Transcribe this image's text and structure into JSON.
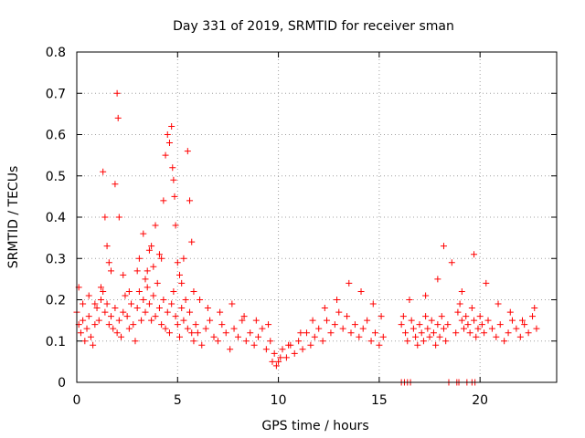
{
  "chart_data": {
    "type": "scatter",
    "title": "Day 331 of 2019, SRMTID for receiver sman",
    "xlabel": "GPS time / hours",
    "ylabel": "SRMTID / TECUs",
    "xlim": [
      0,
      23.8
    ],
    "ylim": [
      0,
      0.8
    ],
    "xticks": [
      0,
      5,
      10,
      15,
      20
    ],
    "xtick_labels": [
      "0",
      "5",
      "10",
      "15",
      "20"
    ],
    "yticks": [
      0,
      0.1,
      0.2,
      0.3,
      0.4,
      0.5,
      0.6,
      0.7,
      0.8
    ],
    "ytick_labels": [
      "0",
      "0.1",
      "0.2",
      "0.3",
      "0.4",
      "0.5",
      "0.6",
      "0.7",
      "0.8"
    ],
    "grid": true,
    "marker": "+",
    "color": "#ff0000",
    "series": [
      {
        "name": "SRMTID",
        "x": [
          0.0,
          0.1,
          0.2,
          0.3,
          0.4,
          0.5,
          0.6,
          0.7,
          0.8,
          0.9,
          1.0,
          1.1,
          1.2,
          1.3,
          1.4,
          1.5,
          1.6,
          1.7,
          1.8,
          1.9,
          2.0,
          2.1,
          2.2,
          2.3,
          2.4,
          2.5,
          2.6,
          2.7,
          2.8,
          2.9,
          3.0,
          3.1,
          3.2,
          3.3,
          3.4,
          3.5,
          3.6,
          3.7,
          3.8,
          3.9,
          4.0,
          4.1,
          4.2,
          4.3,
          4.4,
          4.5,
          4.6,
          4.7,
          4.8,
          4.9,
          5.0,
          5.1,
          5.2,
          5.3,
          5.4,
          5.5,
          5.6,
          5.7,
          5.8,
          5.9,
          6.0,
          6.2,
          6.4,
          6.6,
          6.8,
          7.0,
          7.2,
          7.4,
          7.6,
          7.8,
          8.0,
          8.2,
          8.4,
          8.6,
          8.8,
          9.0,
          9.2,
          9.4,
          9.6,
          9.8,
          10.0,
          10.2,
          10.4,
          10.6,
          10.8,
          11.0,
          11.2,
          11.4,
          11.6,
          11.8,
          12.0,
          12.2,
          12.4,
          12.6,
          12.8,
          13.0,
          13.2,
          13.4,
          13.6,
          13.8,
          14.0,
          14.2,
          14.4,
          14.6,
          14.8,
          15.0,
          15.2,
          16.1,
          16.2,
          16.3,
          16.4,
          16.6,
          16.7,
          16.8,
          16.9,
          17.0,
          17.1,
          17.2,
          17.3,
          17.4,
          17.5,
          17.6,
          17.7,
          17.8,
          17.9,
          18.0,
          18.1,
          18.2,
          18.3,
          18.4,
          18.8,
          18.9,
          19.0,
          19.1,
          19.2,
          19.3,
          19.4,
          19.5,
          19.6,
          19.7,
          19.8,
          19.9,
          20.0,
          20.1,
          20.2,
          20.4,
          20.6,
          20.8,
          21.0,
          21.2,
          21.4,
          21.6,
          21.8,
          22.0,
          22.2,
          22.4,
          22.6,
          22.8,
          1.3,
          1.4,
          1.5,
          1.6,
          1.7,
          1.9,
          2.0,
          2.05,
          2.1,
          3.1,
          3.3,
          3.5,
          3.7,
          3.9,
          4.1,
          4.3,
          4.4,
          4.5,
          4.6,
          4.7,
          4.75,
          4.8,
          4.85,
          4.9,
          5.0,
          5.1,
          5.3,
          5.5,
          5.6,
          5.7,
          0.1,
          0.3,
          0.6,
          0.9,
          1.2,
          2.3,
          2.6,
          3.0,
          3.4,
          3.6,
          3.8,
          4.2,
          5.2,
          5.8,
          6.1,
          6.5,
          7.1,
          7.7,
          8.3,
          8.9,
          9.5,
          9.7,
          9.9,
          10.1,
          10.5,
          11.1,
          11.7,
          12.3,
          12.9,
          13.5,
          14.1,
          14.7,
          15.1,
          16.5,
          17.3,
          17.9,
          18.2,
          18.6,
          19.1,
          19.7,
          20.3,
          20.9,
          21.5,
          22.1,
          22.7,
          16.1,
          16.25,
          16.4,
          16.55,
          18.45,
          18.85,
          18.95,
          19.35,
          19.6,
          19.75
        ],
        "y": [
          0.17,
          0.14,
          0.12,
          0.15,
          0.1,
          0.13,
          0.16,
          0.11,
          0.09,
          0.14,
          0.18,
          0.15,
          0.2,
          0.22,
          0.17,
          0.19,
          0.14,
          0.16,
          0.13,
          0.18,
          0.12,
          0.15,
          0.11,
          0.17,
          0.21,
          0.16,
          0.13,
          0.19,
          0.14,
          0.1,
          0.18,
          0.22,
          0.15,
          0.2,
          0.17,
          0.23,
          0.19,
          0.15,
          0.21,
          0.16,
          0.24,
          0.18,
          0.14,
          0.2,
          0.13,
          0.17,
          0.12,
          0.19,
          0.22,
          0.16,
          0.14,
          0.11,
          0.18,
          0.15,
          0.2,
          0.13,
          0.17,
          0.12,
          0.1,
          0.14,
          0.12,
          0.09,
          0.13,
          0.15,
          0.11,
          0.1,
          0.14,
          0.12,
          0.08,
          0.13,
          0.11,
          0.15,
          0.1,
          0.12,
          0.09,
          0.11,
          0.13,
          0.08,
          0.1,
          0.07,
          0.05,
          0.08,
          0.06,
          0.09,
          0.07,
          0.1,
          0.08,
          0.12,
          0.09,
          0.11,
          0.13,
          0.1,
          0.15,
          0.12,
          0.14,
          0.17,
          0.13,
          0.16,
          0.12,
          0.14,
          0.11,
          0.13,
          0.15,
          0.1,
          0.12,
          0.09,
          0.11,
          0.14,
          0.16,
          0.12,
          0.1,
          0.15,
          0.13,
          0.11,
          0.09,
          0.14,
          0.12,
          0.1,
          0.16,
          0.13,
          0.11,
          0.15,
          0.12,
          0.09,
          0.14,
          0.11,
          0.16,
          0.13,
          0.1,
          0.14,
          0.12,
          0.17,
          0.19,
          0.15,
          0.13,
          0.16,
          0.14,
          0.12,
          0.18,
          0.15,
          0.11,
          0.13,
          0.16,
          0.14,
          0.12,
          0.15,
          0.13,
          0.11,
          0.14,
          0.1,
          0.12,
          0.15,
          0.13,
          0.11,
          0.14,
          0.12,
          0.16,
          0.13,
          0.51,
          0.4,
          0.33,
          0.29,
          0.27,
          0.48,
          0.7,
          0.64,
          0.4,
          0.3,
          0.36,
          0.27,
          0.33,
          0.38,
          0.31,
          0.44,
          0.55,
          0.6,
          0.58,
          0.62,
          0.52,
          0.49,
          0.45,
          0.38,
          0.29,
          0.26,
          0.3,
          0.56,
          0.44,
          0.34,
          0.23,
          0.19,
          0.21,
          0.19,
          0.23,
          0.26,
          0.22,
          0.27,
          0.25,
          0.32,
          0.28,
          0.3,
          0.24,
          0.22,
          0.2,
          0.18,
          0.17,
          0.19,
          0.16,
          0.15,
          0.14,
          0.05,
          0.04,
          0.06,
          0.09,
          0.12,
          0.15,
          0.18,
          0.2,
          0.24,
          0.22,
          0.19,
          0.16,
          0.2,
          0.21,
          0.25,
          0.33,
          0.29,
          0.22,
          0.31,
          0.24,
          0.19,
          0.17,
          0.15,
          0.18,
          0.0,
          0.0,
          0.0,
          0.0,
          0.0,
          0.0,
          0.0,
          0.0,
          0.0,
          0.0
        ]
      }
    ]
  }
}
